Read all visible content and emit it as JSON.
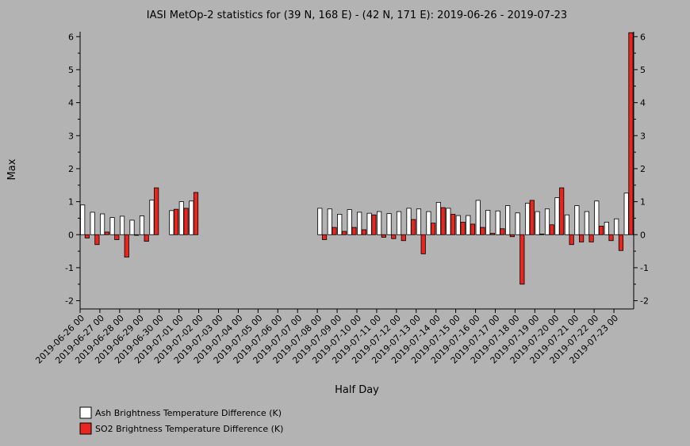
{
  "chart_data": {
    "type": "bar",
    "title": "IASI MetOp-2 statistics for (39 N, 168 E) - (42 N, 171 E): 2019-06-26 - 2019-07-23",
    "xlabel": "Half Day",
    "ylabel": "Max",
    "ylim": [
      -2.25,
      6.15
    ],
    "yticks": [
      -2,
      -1,
      0,
      1,
      2,
      3,
      4,
      5,
      6
    ],
    "grid": false,
    "legend_position": "bottom-left",
    "colors": {
      "background": "#b3b3b3",
      "ash": "#ffffff",
      "so2": "#e8251f",
      "axis": "#000000"
    },
    "x_tick_labels": [
      "2019-06-26 00",
      "2019-06-27 00",
      "2019-06-28 00",
      "2019-06-29 00",
      "2019-06-30 00",
      "2019-07-01 00",
      "2019-07-02 00",
      "2019-07-03 00",
      "2019-07-04 00",
      "2019-07-05 00",
      "2019-07-06 00",
      "2019-07-07 00",
      "2019-07-08 00",
      "2019-07-09 00",
      "2019-07-10 00",
      "2019-07-11 00",
      "2019-07-12 00",
      "2019-07-13 00",
      "2019-07-14 00",
      "2019-07-15 00",
      "2019-07-16 00",
      "2019-07-17 00",
      "2019-07-18 00",
      "2019-07-19 00",
      "2019-07-20 00",
      "2019-07-21 00",
      "2019-07-22 00",
      "2019-07-23 00"
    ],
    "series": [
      {
        "name": "Ash Brightness Temperature Difference (K)",
        "values": [
          0.9,
          0.68,
          0.63,
          0.52,
          0.56,
          0.44,
          0.57,
          1.05,
          null,
          0.73,
          1.0,
          1.02,
          null,
          null,
          null,
          null,
          null,
          null,
          null,
          null,
          null,
          null,
          null,
          null,
          0.8,
          0.78,
          0.62,
          0.76,
          0.68,
          0.65,
          0.7,
          0.64,
          0.7,
          0.8,
          0.78,
          0.7,
          0.98,
          0.8,
          0.58,
          0.58,
          1.04,
          0.74,
          0.72,
          0.88,
          0.66,
          0.95,
          0.7,
          0.78,
          1.12,
          0.6,
          0.88,
          0.7,
          1.02,
          0.38,
          0.48,
          1.26
        ]
      },
      {
        "name": "SO2 Brightness Temperature Difference (K)",
        "values": [
          -0.1,
          -0.3,
          0.08,
          -0.15,
          -0.68,
          -0.02,
          -0.2,
          1.42,
          null,
          0.77,
          0.8,
          1.28,
          null,
          null,
          null,
          null,
          null,
          null,
          null,
          null,
          null,
          null,
          null,
          null,
          -0.15,
          0.22,
          0.1,
          0.22,
          0.15,
          0.6,
          -0.08,
          -0.12,
          -0.18,
          0.46,
          -0.58,
          0.35,
          0.82,
          0.62,
          0.38,
          0.32,
          0.22,
          0.04,
          0.18,
          -0.06,
          -1.5,
          1.04,
          0.02,
          0.3,
          1.42,
          -0.3,
          -0.22,
          -0.22,
          0.26,
          -0.18,
          -0.48,
          6.12
        ]
      }
    ]
  }
}
